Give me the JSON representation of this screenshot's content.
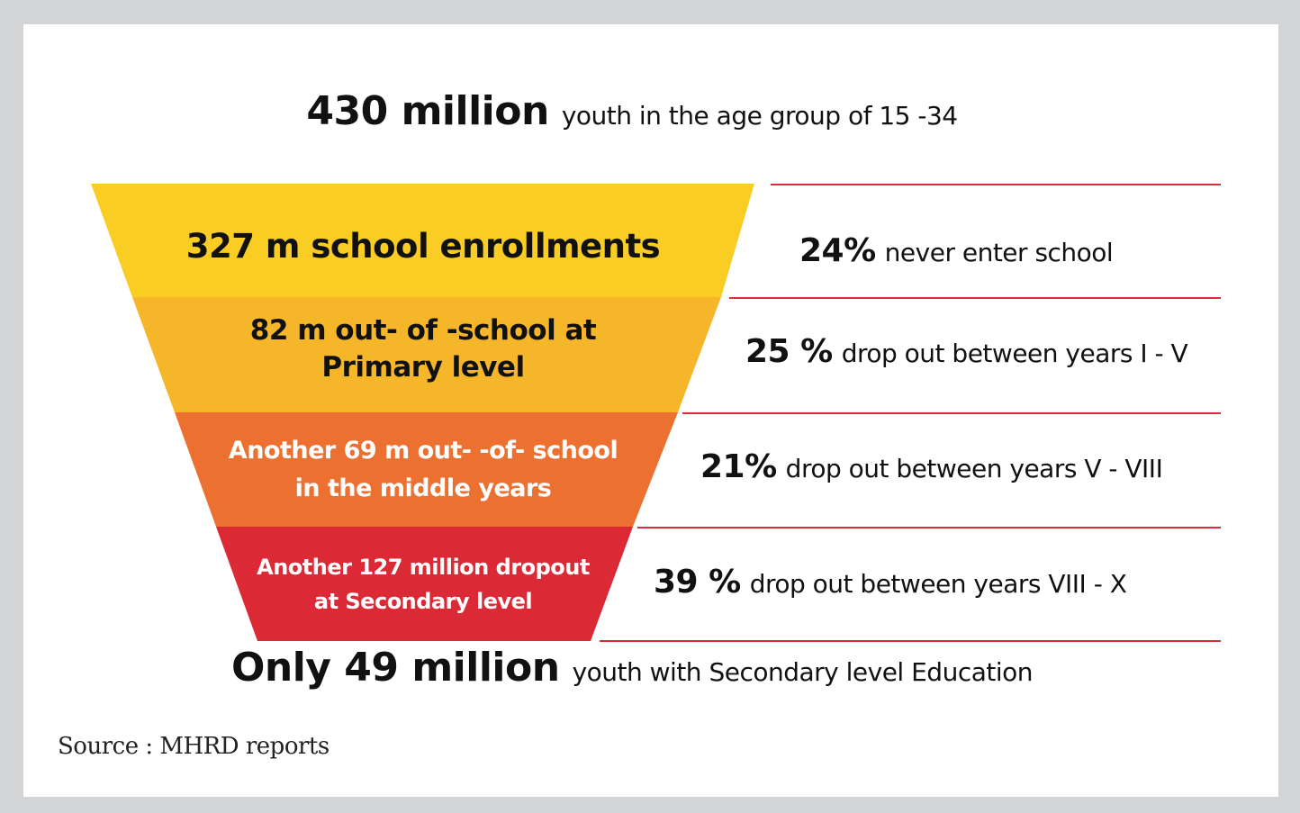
{
  "header": {
    "number": "430 million",
    "text": "youth  in the age group of 15 -34"
  },
  "funnel": {
    "bands": [
      {
        "label": "327 m school enrollments",
        "color": "#f9cd24",
        "text_color": "#111111"
      },
      {
        "label": "82 m out- of -school at Primary level",
        "color": "#f5b62a",
        "text_color": "#111111"
      },
      {
        "label": "Another 69 m out- -of- school in the middle years",
        "color": "#ec7131",
        "text_color": "#ffffff"
      },
      {
        "label": "Another 127 million dropout at Secondary level",
        "color": "#db2a36",
        "text_color": "#ffffff"
      }
    ]
  },
  "stats": [
    {
      "pct": "24%",
      "text": "never enter school"
    },
    {
      "pct": "25 %",
      "text": "drop out between years I - V"
    },
    {
      "pct": "21%",
      "text": "drop out between years V - VIII"
    },
    {
      "pct": "39 %",
      "text": "drop out between years VIII - X"
    }
  ],
  "footer": {
    "number": "Only 49 million",
    "text": "youth with Secondary level Education"
  },
  "source": "Source : MHRD reports",
  "colors": {
    "divider": "#d62f3a",
    "frame": "#d3d4d6"
  }
}
